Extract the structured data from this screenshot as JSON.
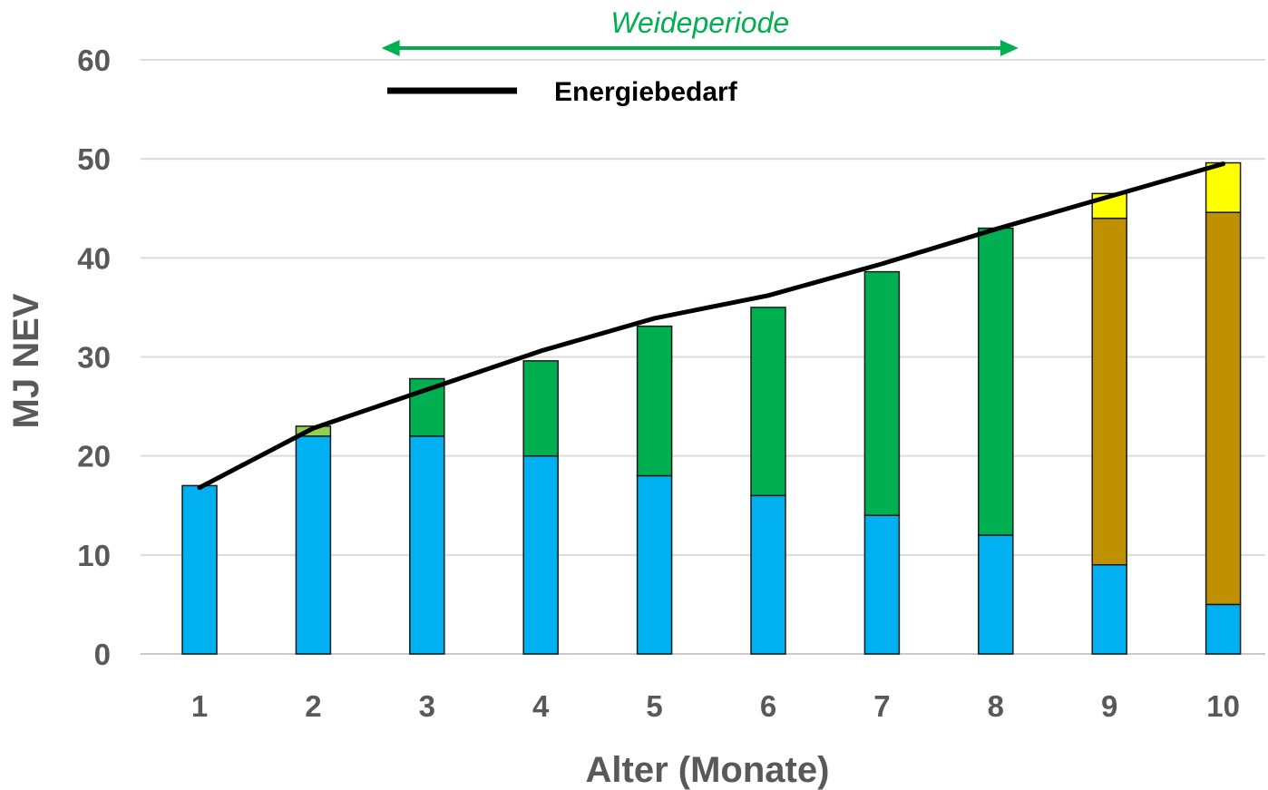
{
  "chart_data": {
    "type": "bar",
    "stacked": true,
    "categories": [
      "1",
      "2",
      "3",
      "4",
      "5",
      "6",
      "7",
      "8",
      "9",
      "10"
    ],
    "xlabel": "Alter (Monate)",
    "ylabel": "MJ NEV",
    "ylim": [
      0,
      60
    ],
    "yticks": [
      "0",
      "10",
      "20",
      "30",
      "40",
      "50",
      "60"
    ],
    "grid": true,
    "series": [
      {
        "color": "#00B0F0",
        "values": [
          17,
          22,
          22,
          20,
          18,
          16,
          14,
          12,
          9,
          5
        ]
      },
      {
        "color": "#92D050",
        "values": [
          0,
          1,
          0,
          0,
          0,
          0,
          0,
          0,
          0,
          0
        ]
      },
      {
        "color": "#00B050",
        "values": [
          0,
          0,
          5.8,
          9.6,
          15.1,
          19,
          24.6,
          31,
          0,
          0
        ]
      },
      {
        "color": "#BF9000",
        "values": [
          0,
          0,
          0,
          0,
          0,
          0,
          0,
          0,
          35,
          39.6
        ]
      },
      {
        "color": "#FFFF00",
        "values": [
          0,
          0,
          0,
          0,
          0,
          0,
          0,
          0,
          2.5,
          5
        ]
      }
    ],
    "line": {
      "name": "Energiebedarf",
      "color": "#000000",
      "values": [
        16.8,
        22.8,
        26.7,
        30.6,
        33.9,
        36.2,
        39.4,
        42.9,
        46.2,
        49.5
      ]
    },
    "annotations": {
      "period_label": "Weideperiode",
      "period_color": "#00B050",
      "period_from": 2.6,
      "period_to": 8.2
    }
  }
}
